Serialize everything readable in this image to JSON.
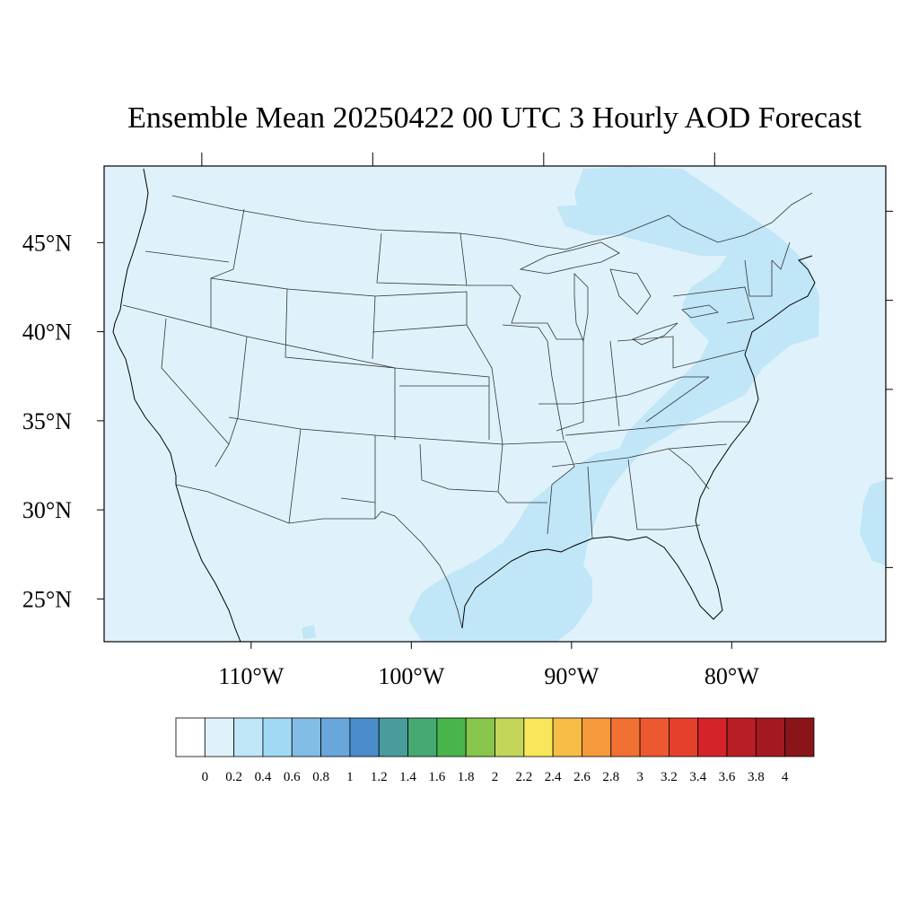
{
  "title": "Ensemble Mean 20250422 00 UTC 3 Hourly AOD Forecast",
  "map": {
    "lon_range": [
      -118.9,
      -70.1
    ],
    "lat_range": [
      22.6,
      49.3
    ],
    "lat_ticks": [
      {
        "value": 45,
        "label": "45°N"
      },
      {
        "value": 40,
        "label": "40°N"
      },
      {
        "value": 35,
        "label": "35°N"
      },
      {
        "value": 30,
        "label": "30°N"
      },
      {
        "value": 25,
        "label": "25°N"
      }
    ],
    "lon_ticks": [
      {
        "value": -110,
        "label": "110°W"
      },
      {
        "value": -100,
        "label": "100°W"
      },
      {
        "value": -90,
        "label": "90°W"
      },
      {
        "value": -80,
        "label": "80°W"
      }
    ],
    "background_level_color": "#dff2fb",
    "plume_color": "#c0e6f7",
    "line_color": "#333333"
  },
  "colorbar": {
    "labels": [
      "0",
      "0.2",
      "0.4",
      "0.6",
      "0.8",
      "1",
      "1.2",
      "1.4",
      "1.6",
      "1.8",
      "2",
      "2.2",
      "2.4",
      "2.6",
      "2.8",
      "3",
      "3.2",
      "3.4",
      "3.6",
      "3.8",
      "4"
    ],
    "colors": [
      "#ffffff",
      "#dff2fb",
      "#c0e6f7",
      "#a1d9f4",
      "#81bde4",
      "#68a6db",
      "#4b8dcb",
      "#4a9b9c",
      "#46a873",
      "#47b54b",
      "#88c54b",
      "#c4d55a",
      "#f8e75a",
      "#f6bd47",
      "#f49a3d",
      "#f17034",
      "#ec582f",
      "#e4402b",
      "#d42429",
      "#b81e25",
      "#a31921",
      "#8a1519"
    ]
  }
}
